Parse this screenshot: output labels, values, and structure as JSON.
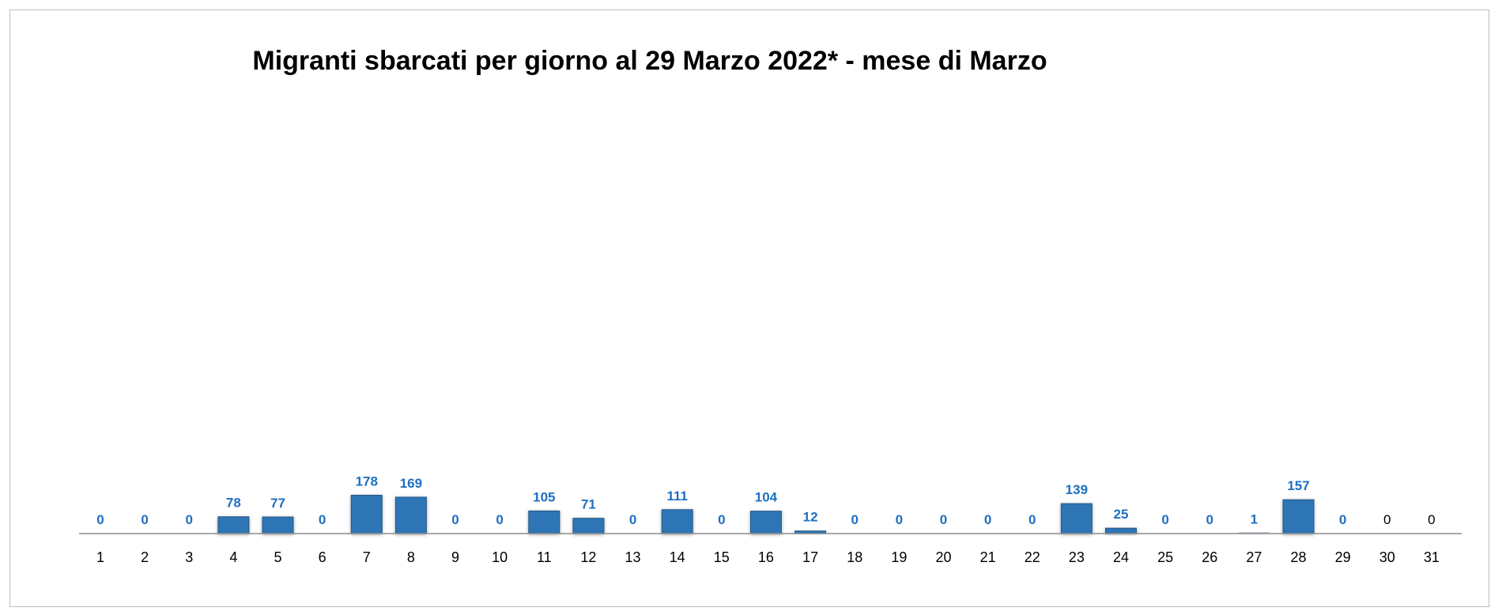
{
  "chart_data": {
    "type": "bar",
    "title": "Migranti sbarcati per giorno al 29 Marzo 2022* - mese di Marzo",
    "xlabel": "",
    "ylabel": "",
    "categories": [
      "1",
      "2",
      "3",
      "4",
      "5",
      "6",
      "7",
      "8",
      "9",
      "10",
      "11",
      "12",
      "13",
      "14",
      "15",
      "16",
      "17",
      "18",
      "19",
      "20",
      "21",
      "22",
      "23",
      "24",
      "25",
      "26",
      "27",
      "28",
      "29",
      "30",
      "31"
    ],
    "values": [
      0,
      0,
      0,
      78,
      77,
      0,
      178,
      169,
      0,
      0,
      105,
      71,
      0,
      111,
      0,
      104,
      12,
      0,
      0,
      0,
      0,
      0,
      139,
      25,
      0,
      0,
      1,
      157,
      0,
      0,
      0
    ],
    "data_labels": [
      "0",
      "0",
      "0",
      "78",
      "77",
      "0",
      "178",
      "169",
      "0",
      "0",
      "105",
      "71",
      "0",
      "111",
      "0",
      "104",
      "12",
      "0",
      "0",
      "0",
      "0",
      "0",
      "139",
      "25",
      "0",
      "0",
      "1",
      "157",
      "0",
      "0",
      "0"
    ],
    "ylim": [
      0,
      2000
    ],
    "grid": false,
    "legend": "none",
    "colors": {
      "bar": "#2e74b5",
      "data_label": "#1f6fc0",
      "data_label_unstyled": "#000000",
      "axis": "#8c8c8c"
    }
  }
}
